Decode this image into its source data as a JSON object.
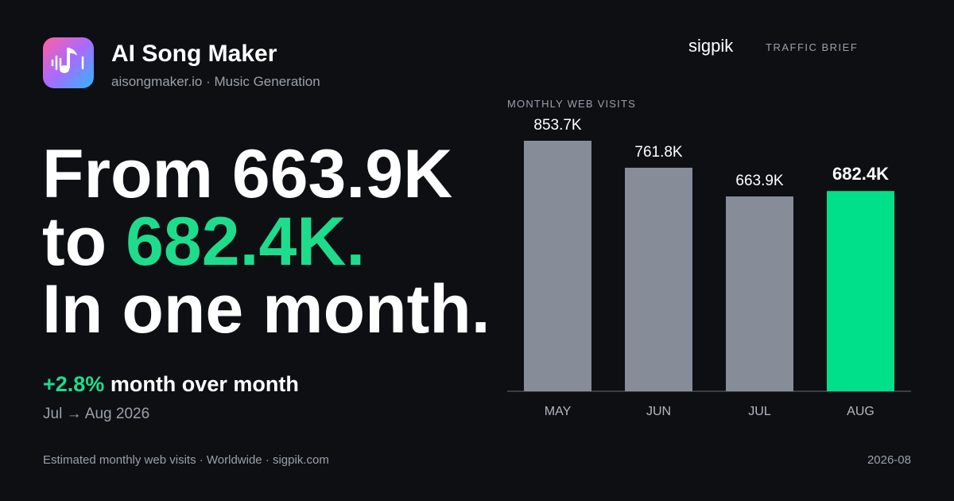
{
  "header": {
    "app_name": "AI Song Maker",
    "subtitle": "aisongmaker.io · Music Generation",
    "brand": "sigpik",
    "section": "TRAFFIC BRIEF"
  },
  "headline": [
    "From 663.9K",
    "to",
    "682.4K.",
    "In one month."
  ],
  "change": {
    "value": "+2.8%",
    "text": "month over month"
  },
  "period": "Jul → Aug 2026",
  "footer": {
    "source": "Estimated monthly web visits · Worldwide · sigpik.com",
    "date": "2026-08"
  },
  "chart_data": {
    "type": "bar",
    "title": "MONTHLY WEB VISITS",
    "categories": [
      "MAY",
      "JUN",
      "JUL",
      "AUG"
    ],
    "values": [
      853700,
      761800,
      663900,
      682400
    ],
    "value_labels": [
      "853.7K",
      "761.8K",
      "663.9K",
      "682.4K"
    ],
    "colors": [
      "#878c99",
      "#878c99",
      "#878c99",
      "#00e08a"
    ]
  }
}
